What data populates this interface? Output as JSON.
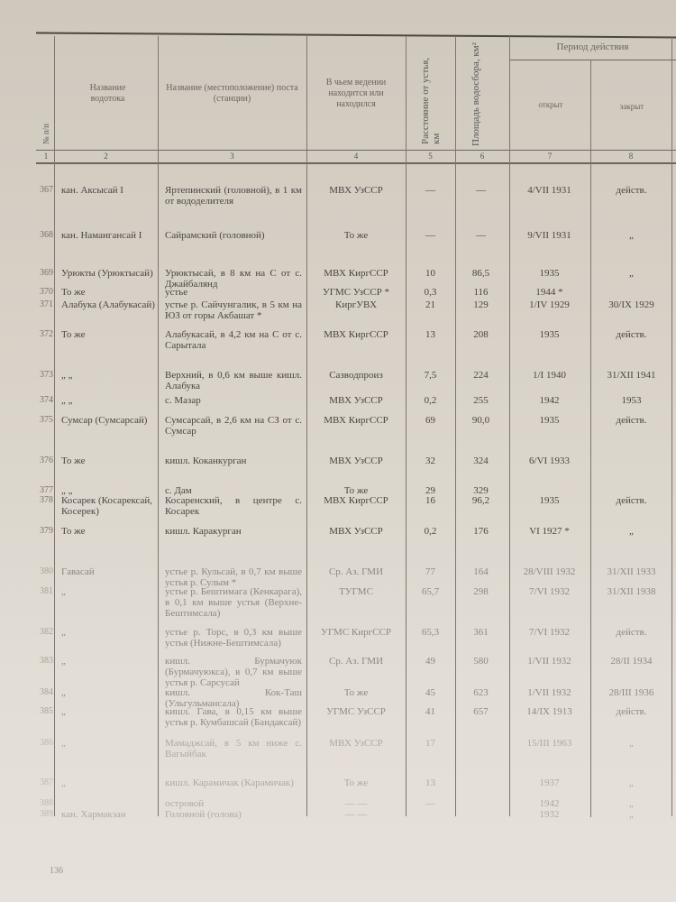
{
  "header": {
    "col1": "№ п/п",
    "col2": "Название водотока",
    "col3": "Название (местоположение) поста (станции)",
    "col4": "В чьем ведении находится или находился",
    "col5": "Расстояние от устья, км",
    "col6": "Площадь водосбора, км²",
    "period": "Период действия",
    "col7": "открыт",
    "col8": "закрыт",
    "numbers": [
      "1",
      "2",
      "3",
      "4",
      "5",
      "6",
      "7",
      "8"
    ]
  },
  "rows": [
    {
      "n": "367",
      "river": "кан. Аксысай I",
      "post": "Яртепинский (головной), в 1 км от вододелителя",
      "org": "МВХ УзССР",
      "dist": "—",
      "area": "—",
      "opened": "4/VII 1931",
      "closed": "действ."
    },
    {
      "n": "368",
      "river": "кан. Намангансай I",
      "post": "Сайрамский (головной)",
      "org": "То же",
      "dist": "—",
      "area": "—",
      "opened": "9/VII 1931",
      "closed": "„"
    },
    {
      "n": "369",
      "river": "Урюкты (Урюктысай)",
      "post": "Урюктысай, в 8 км на С от с. Джайбалянд",
      "org": "МВХ КиргССР",
      "dist": "10",
      "area": "86,5",
      "opened": "1935",
      "closed": "„"
    },
    {
      "n": "370",
      "river": "То же",
      "post": "устье",
      "org": "УГМС УзССР *",
      "dist": "0,3",
      "area": "116",
      "opened": "1944 *",
      "closed": ""
    },
    {
      "n": "371",
      "river": "Алабука (Алабукасай)",
      "post": "устье р. Сайчунгалик, в 5 км на ЮЗ от горы Акбашат *",
      "org": "КиргУВХ",
      "dist": "21",
      "area": "129",
      "opened": "1/IV 1929",
      "closed": "30/IX 1929"
    },
    {
      "n": "372",
      "river": "То же",
      "post": "Алабукасай, в 4,2 км на С от с. Сарытала",
      "org": "МВХ КиргССР",
      "dist": "13",
      "area": "208",
      "opened": "1935",
      "closed": "действ."
    },
    {
      "n": "373",
      "river": "„ „",
      "post": "Верхний, в 0,6 км выше кишл. Алабука",
      "org": "Сазводпроиз",
      "dist": "7,5",
      "area": "224",
      "opened": "1/I 1940",
      "closed": "31/XII 1941"
    },
    {
      "n": "374",
      "river": "„ „",
      "post": "с. Мазар",
      "org": "МВХ УзССР",
      "dist": "0,2",
      "area": "255",
      "opened": "1942",
      "closed": "1953"
    },
    {
      "n": "375",
      "river": "Сумсар (Сумсарсай)",
      "post": "Сумсарсай, в 2,6 км на СЗ от с. Сумсар",
      "org": "МВХ КиргССР",
      "dist": "69",
      "area": "90,0",
      "opened": "1935",
      "closed": "действ."
    },
    {
      "n": "376",
      "river": "То же",
      "post": "кишл. Коканкурган",
      "org": "МВХ УзССР",
      "dist": "32",
      "area": "324",
      "opened": "6/VI 1933",
      "closed": ""
    },
    {
      "n": "377",
      "river": "„ „",
      "post": "с. Дам",
      "org": "То же",
      "dist": "29",
      "area": "329",
      "opened": "",
      "closed": ""
    },
    {
      "n": "378",
      "river": "Косарек (Косарексай, Косерек)",
      "post": "Косаренский, в центре с. Косарек",
      "org": "МВХ КиргССР",
      "dist": "16",
      "area": "96,2",
      "opened": "1935",
      "closed": "действ."
    },
    {
      "n": "379",
      "river": "То же",
      "post": "кишл. Каракурган",
      "org": "МВХ УзССР",
      "dist": "0,2",
      "area": "176",
      "opened": "VI 1927 *",
      "closed": "„"
    },
    {
      "n": "380",
      "river": "Гавасай",
      "post": "устье р. Кульсай, в 0,7 км выше устья р. Сулым *",
      "org": "Ср. Аз. ГМИ",
      "dist": "77",
      "area": "164",
      "opened": "28/VIII 1932",
      "closed": "31/XII 1933"
    },
    {
      "n": "381",
      "river": "„",
      "post": "устье р. Бештимага (Кенкарага), в 0,1 км выше устья (Верхне-Бештимсала)",
      "org": "ТУГМС",
      "dist": "65,7",
      "area": "298",
      "opened": "7/VI 1932",
      "closed": "31/XII 1938"
    },
    {
      "n": "382",
      "river": "„",
      "post": "устье р. Торс, в 0,3 км выше устья (Нижне-Бештимсала)",
      "org": "УГМС КиргССР",
      "dist": "65,3",
      "area": "361",
      "opened": "7/VI 1932",
      "closed": "действ."
    },
    {
      "n": "383",
      "river": "„",
      "post": "кишл. Бурмачуюк (Бурмачуюкса), в 0,7 км выше устья р. Сарсусай",
      "org": "Ср. Аз. ГМИ",
      "dist": "49",
      "area": "580",
      "opened": "1/VII 1932",
      "closed": "28/II 1934"
    },
    {
      "n": "384",
      "river": "„",
      "post": "кишл. Кок-Таш (Ульгульмансала)",
      "org": "То же",
      "dist": "45",
      "area": "623",
      "opened": "1/VII 1932",
      "closed": "28/III 1936"
    },
    {
      "n": "385",
      "river": "„",
      "post": "кишл. Гава, в 0,15 км выше устья р. Кумбашсай (Бандаксай)",
      "org": "УГМС УзССР",
      "dist": "41",
      "area": "657",
      "opened": "14/IX 1913",
      "closed": "действ."
    },
    {
      "n": "386",
      "river": "„",
      "post": "Мамаджсай, в 5 км ниже с. Вагыйбак",
      "org": "МВХ УзССР",
      "dist": "17",
      "area": "",
      "opened": "15/III 1963",
      "closed": "„"
    },
    {
      "n": "387",
      "river": "„",
      "post": "кишл. Карамичак (Карамичак)",
      "org": "То же",
      "dist": "13",
      "area": "",
      "opened": "1937",
      "closed": "„"
    },
    {
      "n": "388",
      "river": "",
      "post": "островой",
      "org": "— —",
      "dist": "—",
      "area": "",
      "opened": "1942",
      "closed": "„"
    },
    {
      "n": "389",
      "river": "кан. Хармакзан",
      "post": "Головной (голова)",
      "org": "— —",
      "dist": "",
      "area": "",
      "opened": "1932",
      "closed": "„"
    }
  ],
  "page_number": "136"
}
